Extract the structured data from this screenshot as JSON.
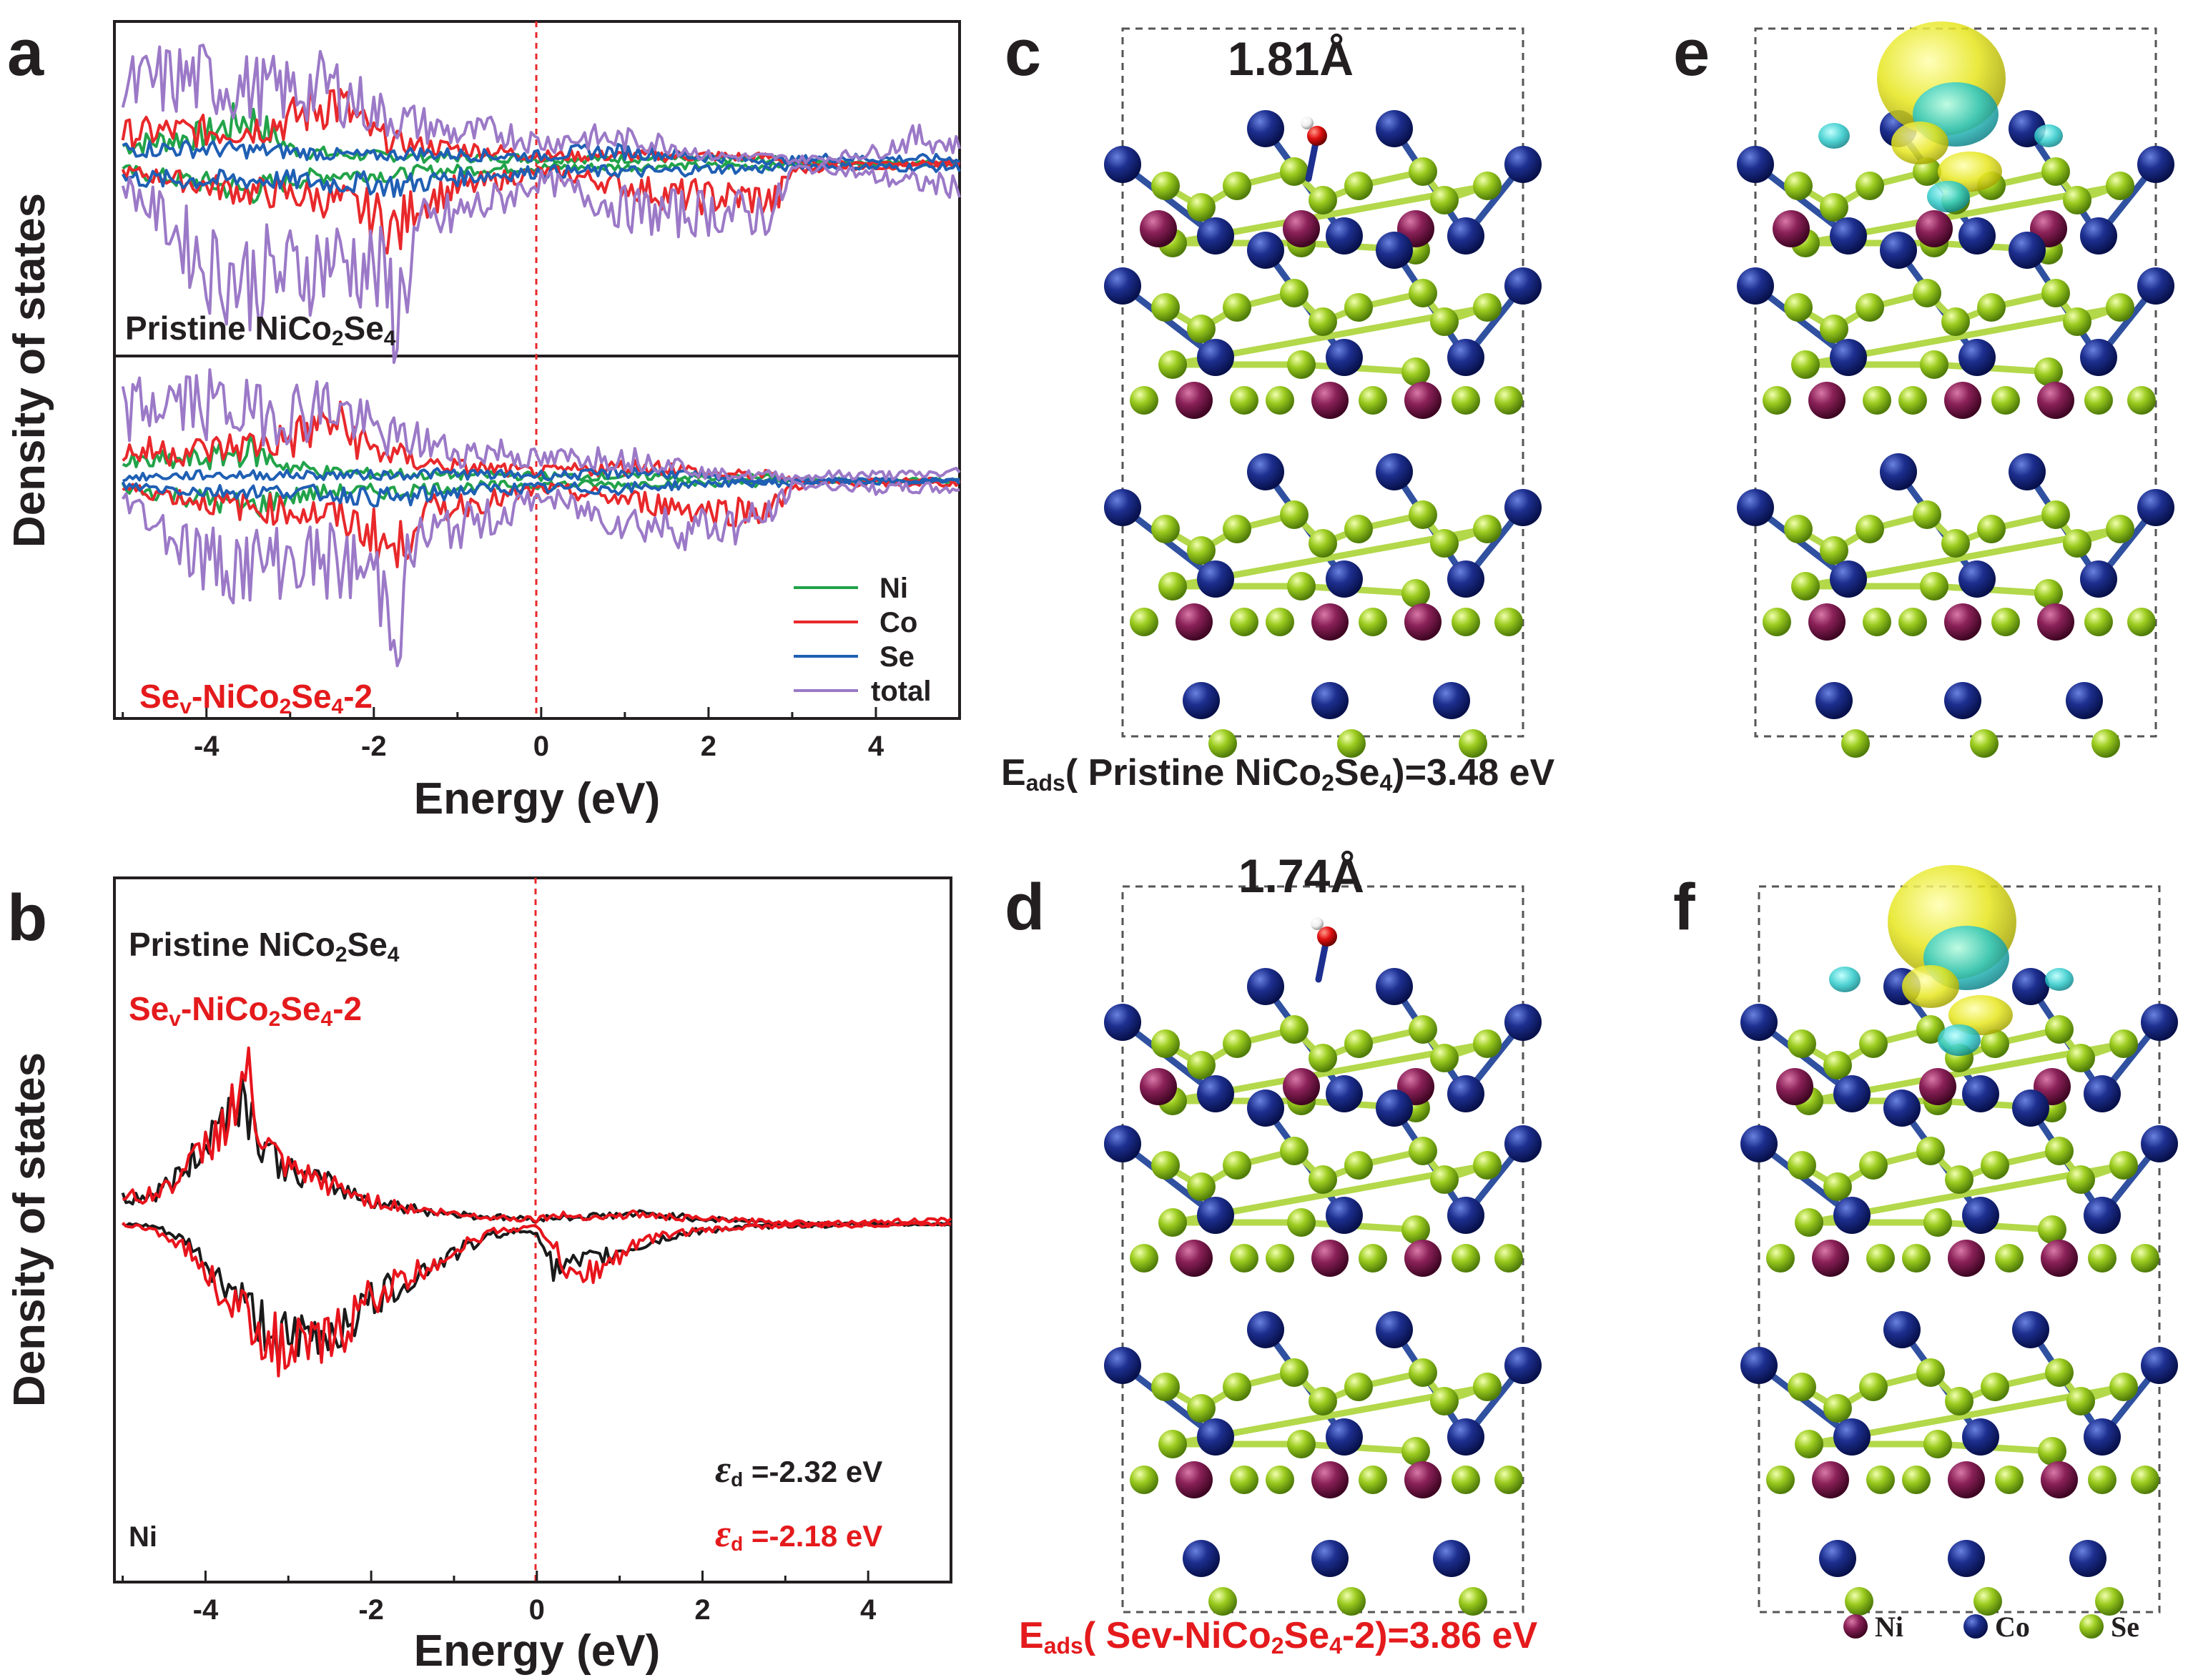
{
  "panels": {
    "a": "a",
    "b": "b",
    "c": "c",
    "d": "d",
    "e": "e",
    "f": "f"
  },
  "colors": {
    "ni": "#22a34a",
    "co": "#e8282b",
    "se": "#1f5fb4",
    "total": "#9b79c7",
    "pristine": "#1a1a1a",
    "vacancy": "#e8141c",
    "atom_ni": "#7d1b4e",
    "atom_co": "#1d2f8f",
    "atom_se": "#9ccc1f",
    "iso_yellow": "#e6e61e",
    "iso_cyan": "#2ec9c9"
  },
  "panel_a": {
    "top_label_prefix": "Pristine NiCo",
    "top_label_sub1": "2",
    "top_label_mid": "Se",
    "top_label_sub2": "4",
    "bottom_label_se": "Se",
    "bottom_label_v": "v",
    "bottom_label_mid": "-NiCo",
    "bottom_label_sub1": "2",
    "bottom_label_se2": "Se",
    "bottom_label_sub2": "4",
    "bottom_label_suffix": "-2"
  },
  "panel_b": {
    "legend_pristine_prefix": "Pristine NiCo",
    "legend_pristine_sub1": "2",
    "legend_pristine_mid": "Se",
    "legend_pristine_sub2": "4",
    "legend_vac_se": "Se",
    "legend_vac_v": "v",
    "legend_vac_mid": "-NiCo",
    "legend_vac_sub1": "2",
    "legend_vac_se2": "Se",
    "legend_vac_sub2": "4",
    "legend_vac_suffix": "-2",
    "element": "Ni",
    "eps_symbol": "ε",
    "eps_sub": "d",
    "eps_pristine_value": " =-2.32 eV",
    "eps_vacancy_value": " =-2.18 eV"
  },
  "panel_c": {
    "bond": "1.81Å",
    "eads_e": "E",
    "eads_sub": "ads",
    "eads_prefix": "( Pristine NiCo",
    "eads_sub1": "2",
    "eads_mid": "Se",
    "eads_sub2": "4",
    "eads_value": ")=3.48 eV"
  },
  "panel_d": {
    "bond": "1.74Å",
    "eads_e": "E",
    "eads_sub": "ads",
    "eads_prefix": "( Sev-NiCo",
    "eads_sub1": "2",
    "eads_mid": "Se",
    "eads_sub2": "4",
    "eads_value": "-2)=3.86 eV"
  },
  "structure_legend": {
    "ni": "Ni",
    "co": "Co",
    "se": "Se"
  },
  "chart_data": [
    {
      "id": "a-top",
      "type": "line",
      "title": "Pristine NiCo2Se4",
      "xlabel": "Energy (eV)",
      "ylabel": "Density of states",
      "xlim": [
        -5.1,
        5.0
      ],
      "ylim": [
        -1.1,
        0.85
      ],
      "xticks": [
        -4,
        -2,
        0,
        2,
        4
      ],
      "fermi_level": 0,
      "x": [
        -5.0,
        -4.5,
        -4.0,
        -3.5,
        -3.0,
        -2.5,
        -2.0,
        -1.7,
        -1.5,
        -1.0,
        -0.5,
        0.0,
        0.5,
        1.0,
        1.5,
        2.0,
        2.5,
        2.8,
        3.0,
        3.5,
        4.0,
        4.5,
        5.0
      ],
      "series": [
        {
          "name": "Ni",
          "up": [
            0.12,
            0.16,
            0.2,
            0.32,
            0.1,
            0.06,
            0.05,
            0.05,
            0.04,
            0.04,
            0.04,
            0.03,
            0.03,
            0.03,
            0.03,
            0.02,
            0.02,
            0.02,
            0.0,
            0.0,
            0.0,
            0.0,
            0.0
          ],
          "down": [
            -0.05,
            -0.1,
            -0.14,
            -0.2,
            -0.12,
            -0.08,
            -0.08,
            -0.09,
            -0.06,
            -0.05,
            -0.04,
            -0.03,
            -0.03,
            -0.03,
            -0.02,
            -0.02,
            -0.02,
            -0.02,
            0.0,
            0.0,
            0.0,
            0.0,
            0.0
          ]
        },
        {
          "name": "Co",
          "up": [
            0.2,
            0.22,
            0.22,
            0.24,
            0.3,
            0.45,
            0.2,
            0.14,
            0.12,
            0.1,
            0.08,
            0.05,
            0.05,
            0.05,
            0.05,
            0.05,
            0.04,
            0.04,
            0.0,
            0.0,
            0.0,
            0.0,
            0.0
          ],
          "down": [
            -0.06,
            -0.1,
            -0.16,
            -0.2,
            -0.22,
            -0.26,
            -0.36,
            -0.48,
            -0.28,
            -0.18,
            -0.12,
            -0.06,
            -0.1,
            -0.16,
            -0.22,
            -0.24,
            -0.24,
            -0.28,
            -0.05,
            -0.02,
            -0.02,
            -0.02,
            -0.02
          ]
        },
        {
          "name": "Se",
          "up": [
            0.1,
            0.1,
            0.1,
            0.09,
            0.08,
            0.06,
            0.05,
            0.06,
            0.07,
            0.06,
            0.05,
            0.05,
            0.08,
            0.08,
            0.06,
            0.04,
            0.02,
            0.02,
            0.02,
            0.04,
            0.03,
            0.03,
            0.03
          ],
          "down": [
            -0.1,
            -0.12,
            -0.12,
            -0.12,
            -0.12,
            -0.14,
            -0.14,
            -0.16,
            -0.14,
            -0.1,
            -0.08,
            -0.06,
            -0.06,
            -0.06,
            -0.06,
            -0.04,
            -0.04,
            -0.04,
            -0.02,
            -0.02,
            -0.03,
            -0.03,
            -0.03
          ]
        },
        {
          "name": "total",
          "up": [
            0.5,
            0.58,
            0.58,
            0.52,
            0.5,
            0.54,
            0.36,
            0.3,
            0.28,
            0.2,
            0.22,
            0.14,
            0.18,
            0.16,
            0.14,
            0.05,
            0.04,
            0.04,
            0.02,
            0.04,
            0.08,
            0.18,
            0.12
          ],
          "down": [
            -0.14,
            -0.4,
            -0.72,
            -0.82,
            -0.78,
            -0.66,
            -0.74,
            -1.05,
            -0.5,
            -0.36,
            -0.26,
            -0.12,
            -0.22,
            -0.32,
            -0.36,
            -0.34,
            -0.36,
            -0.34,
            -0.04,
            -0.04,
            -0.1,
            -0.14,
            -0.16
          ]
        }
      ]
    },
    {
      "id": "a-bottom",
      "type": "line",
      "title": "Sev-NiCo2Se4-2",
      "xlabel": "Energy (eV)",
      "ylabel": "Density of states",
      "xlim": [
        -5.1,
        5.0
      ],
      "ylim": [
        -1.1,
        0.85
      ],
      "xticks": [
        -4,
        -2,
        0,
        2,
        4
      ],
      "fermi_level": 0,
      "legend": [
        "Ni",
        "Co",
        "Se",
        "total"
      ],
      "x": [
        -5.0,
        -4.5,
        -4.0,
        -3.5,
        -3.0,
        -2.5,
        -2.0,
        -1.7,
        -1.5,
        -1.0,
        -0.5,
        0.0,
        0.5,
        1.0,
        1.5,
        2.0,
        2.5,
        2.8,
        3.0,
        3.5,
        4.0,
        4.5,
        5.0
      ],
      "series": [
        {
          "name": "Ni",
          "up": [
            0.12,
            0.14,
            0.16,
            0.22,
            0.1,
            0.06,
            0.05,
            0.05,
            0.04,
            0.04,
            0.04,
            0.03,
            0.03,
            0.03,
            0.03,
            0.02,
            0.02,
            0.02,
            0.0,
            0.0,
            0.0,
            0.0,
            0.0
          ],
          "down": [
            -0.05,
            -0.1,
            -0.14,
            -0.2,
            -0.12,
            -0.08,
            -0.08,
            -0.09,
            -0.06,
            -0.05,
            -0.04,
            -0.03,
            -0.03,
            -0.03,
            -0.02,
            -0.02,
            -0.02,
            -0.02,
            0.0,
            0.0,
            0.0,
            0.0,
            0.0
          ]
        },
        {
          "name": "Co",
          "up": [
            0.2,
            0.22,
            0.22,
            0.26,
            0.3,
            0.44,
            0.22,
            0.18,
            0.14,
            0.1,
            0.08,
            0.06,
            0.08,
            0.1,
            0.1,
            0.05,
            0.04,
            0.04,
            0.0,
            0.0,
            0.0,
            0.0,
            0.0
          ],
          "down": [
            -0.06,
            -0.1,
            -0.16,
            -0.2,
            -0.22,
            -0.26,
            -0.38,
            -0.58,
            -0.26,
            -0.18,
            -0.14,
            -0.06,
            -0.1,
            -0.14,
            -0.18,
            -0.22,
            -0.22,
            -0.2,
            -0.04,
            -0.02,
            -0.02,
            -0.02,
            -0.02
          ]
        },
        {
          "name": "Se",
          "up": [
            0.02,
            0.03,
            0.04,
            0.04,
            0.04,
            0.04,
            0.04,
            0.04,
            0.05,
            0.05,
            0.04,
            0.04,
            0.04,
            0.06,
            0.06,
            0.02,
            0.0,
            0.0,
            0.0,
            0.0,
            0.0,
            0.0,
            0.0
          ],
          "down": [
            -0.04,
            -0.06,
            -0.08,
            -0.08,
            -0.08,
            -0.1,
            -0.12,
            -0.14,
            -0.12,
            -0.08,
            -0.06,
            -0.06,
            -0.06,
            -0.06,
            -0.04,
            -0.02,
            -0.02,
            -0.02,
            -0.02,
            -0.01,
            -0.01,
            -0.01,
            -0.01
          ]
        },
        {
          "name": "total",
          "up": [
            0.5,
            0.58,
            0.56,
            0.5,
            0.5,
            0.56,
            0.36,
            0.3,
            0.3,
            0.2,
            0.22,
            0.14,
            0.18,
            0.16,
            0.14,
            0.05,
            0.04,
            0.04,
            0.02,
            0.04,
            0.04,
            0.04,
            0.06
          ],
          "down": [
            -0.12,
            -0.36,
            -0.6,
            -0.62,
            -0.58,
            -0.6,
            -0.7,
            -1.0,
            -0.44,
            -0.34,
            -0.26,
            -0.12,
            -0.22,
            -0.3,
            -0.34,
            -0.34,
            -0.32,
            -0.22,
            -0.04,
            -0.04,
            -0.06,
            -0.06,
            -0.06
          ]
        }
      ]
    },
    {
      "id": "b",
      "type": "line",
      "title": "Ni",
      "xlabel": "Energy (eV)",
      "ylabel": "Density of states",
      "xlim": [
        -5.1,
        5.0
      ],
      "ylim": [
        -2.0,
        1.0
      ],
      "xticks": [
        -4,
        -2,
        0,
        2,
        4
      ],
      "fermi_level": 0,
      "legend": [
        "Pristine NiCo2Se4",
        "Sev-NiCo2Se4-2"
      ],
      "x": [
        -5.0,
        -4.6,
        -4.2,
        -3.8,
        -3.6,
        -3.5,
        -3.4,
        -3.2,
        -3.0,
        -2.5,
        -2.0,
        -1.5,
        -1.0,
        -0.5,
        0.0,
        0.2,
        0.4,
        0.8,
        1.2,
        1.6,
        2.0,
        2.5,
        3.0,
        3.5,
        4.0,
        4.5,
        5.0
      ],
      "series": [
        {
          "name": "Pristine NiCo2Se4",
          "up": [
            0.15,
            0.18,
            0.35,
            0.65,
            0.8,
            0.72,
            0.58,
            0.42,
            0.32,
            0.24,
            0.14,
            0.09,
            0.06,
            0.04,
            0.03,
            0.04,
            0.04,
            0.05,
            0.06,
            0.05,
            0.03,
            0.02,
            0.0,
            0.0,
            0.0,
            0.0,
            0.0
          ],
          "down": [
            0.0,
            -0.02,
            -0.12,
            -0.36,
            -0.44,
            -0.5,
            -0.56,
            -0.66,
            -0.74,
            -0.66,
            -0.48,
            -0.32,
            -0.18,
            -0.06,
            -0.04,
            -0.28,
            -0.26,
            -0.2,
            -0.14,
            -0.08,
            -0.04,
            -0.02,
            -0.01,
            -0.01,
            0.0,
            0.0,
            0.0
          ]
        },
        {
          "name": "Sev-NiCo2Se4-2",
          "up": [
            0.15,
            0.18,
            0.34,
            0.6,
            0.78,
            0.92,
            0.6,
            0.42,
            0.32,
            0.24,
            0.14,
            0.09,
            0.06,
            0.04,
            0.03,
            0.05,
            0.05,
            0.04,
            0.06,
            0.04,
            0.03,
            0.02,
            0.01,
            0.01,
            0.01,
            0.02,
            0.02
          ],
          "down": [
            0.0,
            -0.04,
            -0.16,
            -0.42,
            -0.5,
            -0.56,
            -0.62,
            -0.7,
            -0.8,
            -0.72,
            -0.44,
            -0.32,
            -0.16,
            -0.04,
            -0.02,
            -0.12,
            -0.34,
            -0.26,
            -0.12,
            -0.06,
            -0.04,
            -0.02,
            -0.01,
            -0.01,
            -0.01,
            0.0,
            0.0
          ]
        }
      ]
    }
  ]
}
